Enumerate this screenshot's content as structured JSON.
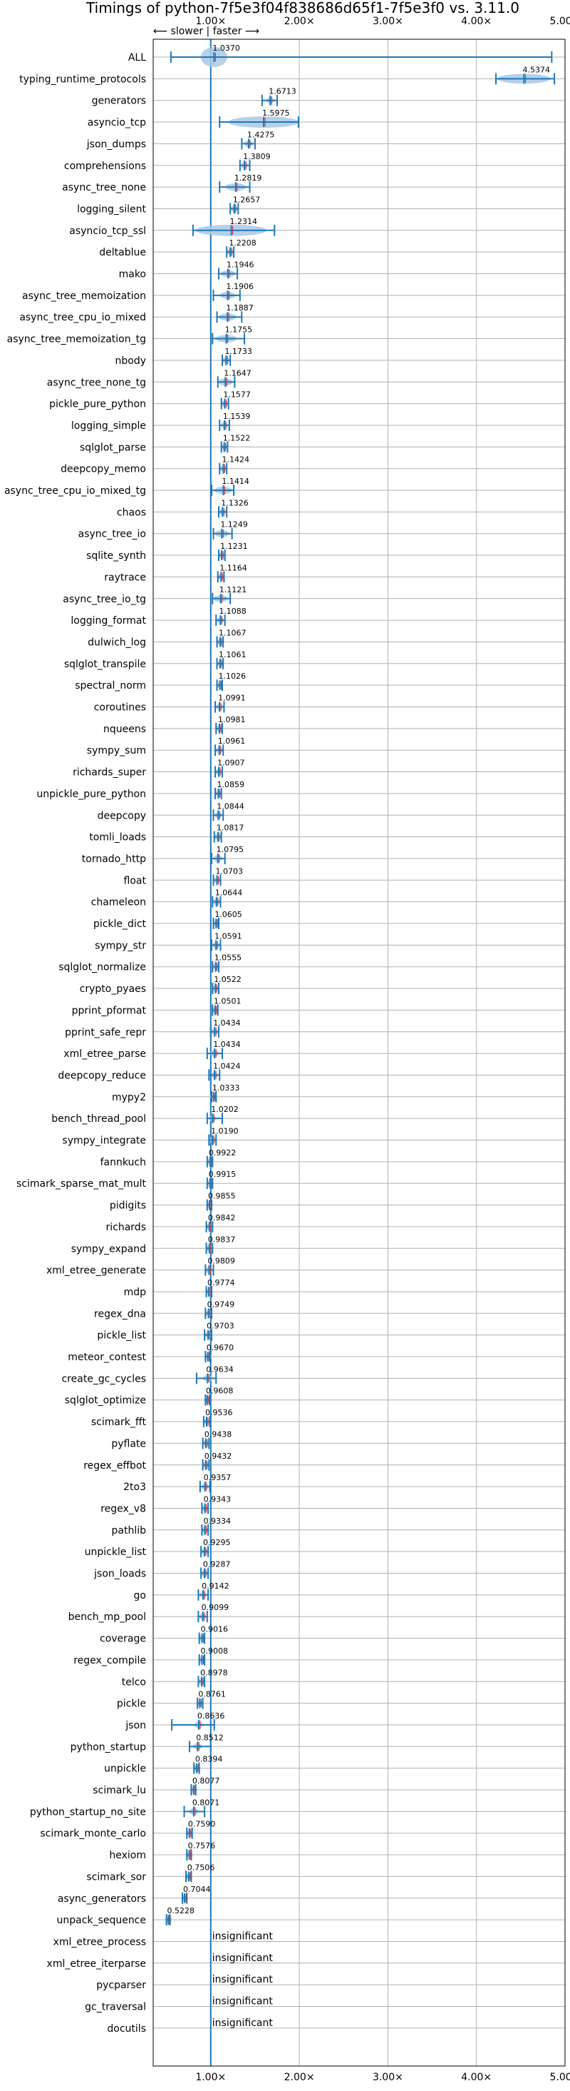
{
  "chart_data": {
    "type": "violin",
    "title": "Timings of python-7f5e3f04f838686d65f1-7f5e3f0 vs. 3.11.0",
    "speed_hint": "⟵ slower | faster ⟶",
    "xlim": [
      0.35,
      5.0
    ],
    "x_ticks": [
      1,
      2,
      3,
      4,
      5
    ],
    "x_tick_labels": [
      "1.00×",
      "2.00×",
      "3.00×",
      "4.00×",
      "5.00×"
    ],
    "grid": true,
    "reference_line": 1.0,
    "colors": {
      "violin": "#a9c8e4",
      "line": "#1f77b4",
      "mean": "#d62728"
    },
    "insignificant_label": "insignificant",
    "benchmarks": [
      {
        "name": "ALL",
        "value": 1.037,
        "min": 0.55,
        "max": 4.85,
        "spread": 0.15
      },
      {
        "name": "typing_runtime_protocols",
        "value": 4.5374,
        "min": 4.22,
        "max": 4.88,
        "spread": 0.3
      },
      {
        "name": "generators",
        "value": 1.6713,
        "min": 1.58,
        "max": 1.75,
        "spread": 0.04
      },
      {
        "name": "asyncio_tcp",
        "value": 1.5975,
        "min": 1.1,
        "max": 1.99,
        "spread": 0.4
      },
      {
        "name": "json_dumps",
        "value": 1.4275,
        "min": 1.35,
        "max": 1.5,
        "spread": 0.05
      },
      {
        "name": "comprehensions",
        "value": 1.3809,
        "min": 1.33,
        "max": 1.44,
        "spread": 0.04
      },
      {
        "name": "async_tree_none",
        "value": 1.2819,
        "min": 1.1,
        "max": 1.44,
        "spread": 0.12
      },
      {
        "name": "logging_silent",
        "value": 1.2657,
        "min": 1.22,
        "max": 1.31,
        "spread": 0.04
      },
      {
        "name": "asyncio_tcp_ssl",
        "value": 1.2314,
        "min": 0.8,
        "max": 1.72,
        "spread": 0.4
      },
      {
        "name": "deltablue",
        "value": 1.2208,
        "min": 1.18,
        "max": 1.26,
        "spread": 0.03
      },
      {
        "name": "mako",
        "value": 1.1946,
        "min": 1.09,
        "max": 1.3,
        "spread": 0.08
      },
      {
        "name": "async_tree_memoization",
        "value": 1.1906,
        "min": 1.03,
        "max": 1.33,
        "spread": 0.09
      },
      {
        "name": "async_tree_cpu_io_mixed",
        "value": 1.1887,
        "min": 1.07,
        "max": 1.35,
        "spread": 0.1
      },
      {
        "name": "async_tree_memoization_tg",
        "value": 1.1755,
        "min": 1.02,
        "max": 1.38,
        "spread": 0.12
      },
      {
        "name": "nbody",
        "value": 1.1733,
        "min": 1.13,
        "max": 1.22,
        "spread": 0.03
      },
      {
        "name": "async_tree_none_tg",
        "value": 1.1647,
        "min": 1.08,
        "max": 1.27,
        "spread": 0.08
      },
      {
        "name": "pickle_pure_python",
        "value": 1.1577,
        "min": 1.12,
        "max": 1.2,
        "spread": 0.03
      },
      {
        "name": "logging_simple",
        "value": 1.1539,
        "min": 1.1,
        "max": 1.21,
        "spread": 0.04
      },
      {
        "name": "sqlglot_parse",
        "value": 1.1522,
        "min": 1.12,
        "max": 1.19,
        "spread": 0.03
      },
      {
        "name": "deepcopy_memo",
        "value": 1.1424,
        "min": 1.1,
        "max": 1.18,
        "spread": 0.03
      },
      {
        "name": "async_tree_cpu_io_mixed_tg",
        "value": 1.1414,
        "min": 1.01,
        "max": 1.26,
        "spread": 0.1
      },
      {
        "name": "chaos",
        "value": 1.1326,
        "min": 1.09,
        "max": 1.18,
        "spread": 0.03
      },
      {
        "name": "async_tree_io",
        "value": 1.1249,
        "min": 1.03,
        "max": 1.24,
        "spread": 0.08
      },
      {
        "name": "sqlite_synth",
        "value": 1.1231,
        "min": 1.09,
        "max": 1.16,
        "spread": 0.03
      },
      {
        "name": "raytrace",
        "value": 1.1164,
        "min": 1.08,
        "max": 1.15,
        "spread": 0.03
      },
      {
        "name": "async_tree_io_tg",
        "value": 1.1121,
        "min": 1.02,
        "max": 1.22,
        "spread": 0.08
      },
      {
        "name": "logging_format",
        "value": 1.1088,
        "min": 1.06,
        "max": 1.16,
        "spread": 0.04
      },
      {
        "name": "dulwich_log",
        "value": 1.1067,
        "min": 1.07,
        "max": 1.14,
        "spread": 0.03
      },
      {
        "name": "sqlglot_transpile",
        "value": 1.1061,
        "min": 1.07,
        "max": 1.14,
        "spread": 0.03
      },
      {
        "name": "spectral_norm",
        "value": 1.1026,
        "min": 1.07,
        "max": 1.13,
        "spread": 0.03
      },
      {
        "name": "coroutines",
        "value": 1.0991,
        "min": 1.05,
        "max": 1.15,
        "spread": 0.04
      },
      {
        "name": "nqueens",
        "value": 1.0981,
        "min": 1.06,
        "max": 1.13,
        "spread": 0.03
      },
      {
        "name": "sympy_sum",
        "value": 1.0961,
        "min": 1.05,
        "max": 1.14,
        "spread": 0.03
      },
      {
        "name": "richards_super",
        "value": 1.0907,
        "min": 1.05,
        "max": 1.13,
        "spread": 0.03
      },
      {
        "name": "unpickle_pure_python",
        "value": 1.0859,
        "min": 1.05,
        "max": 1.12,
        "spread": 0.03
      },
      {
        "name": "deepcopy",
        "value": 1.0844,
        "min": 1.03,
        "max": 1.14,
        "spread": 0.04
      },
      {
        "name": "tomli_loads",
        "value": 1.0817,
        "min": 1.04,
        "max": 1.12,
        "spread": 0.03
      },
      {
        "name": "tornado_http",
        "value": 1.0795,
        "min": 1.01,
        "max": 1.16,
        "spread": 0.05
      },
      {
        "name": "float",
        "value": 1.0703,
        "min": 1.03,
        "max": 1.11,
        "spread": 0.03
      },
      {
        "name": "chameleon",
        "value": 1.0644,
        "min": 1.02,
        "max": 1.11,
        "spread": 0.03
      },
      {
        "name": "pickle_dict",
        "value": 1.0605,
        "min": 1.03,
        "max": 1.09,
        "spread": 0.03
      },
      {
        "name": "sympy_str",
        "value": 1.0591,
        "min": 1.01,
        "max": 1.11,
        "spread": 0.04
      },
      {
        "name": "sqlglot_normalize",
        "value": 1.0555,
        "min": 1.02,
        "max": 1.09,
        "spread": 0.03
      },
      {
        "name": "crypto_pyaes",
        "value": 1.0522,
        "min": 1.02,
        "max": 1.09,
        "spread": 0.03
      },
      {
        "name": "pprint_pformat",
        "value": 1.0501,
        "min": 1.02,
        "max": 1.08,
        "spread": 0.03
      },
      {
        "name": "pprint_safe_repr",
        "value": 1.0434,
        "min": 1.0,
        "max": 1.09,
        "spread": 0.03
      },
      {
        "name": "xml_etree_parse",
        "value": 1.0434,
        "min": 0.96,
        "max": 1.13,
        "spread": 0.05
      },
      {
        "name": "deepcopy_reduce",
        "value": 1.0424,
        "min": 0.98,
        "max": 1.1,
        "spread": 0.04
      },
      {
        "name": "mypy2",
        "value": 1.0333,
        "min": 1.01,
        "max": 1.06,
        "spread": 0.02
      },
      {
        "name": "bench_thread_pool",
        "value": 1.0202,
        "min": 0.96,
        "max": 1.13,
        "spread": 0.04
      },
      {
        "name": "sympy_integrate",
        "value": 1.019,
        "min": 0.98,
        "max": 1.06,
        "spread": 0.03
      },
      {
        "name": "fannkuch",
        "value": 0.9922,
        "min": 0.96,
        "max": 1.02,
        "spread": 0.02
      },
      {
        "name": "scimark_sparse_mat_mult",
        "value": 0.9915,
        "min": 0.96,
        "max": 1.02,
        "spread": 0.02
      },
      {
        "name": "pidigits",
        "value": 0.9855,
        "min": 0.96,
        "max": 1.01,
        "spread": 0.02
      },
      {
        "name": "richards",
        "value": 0.9842,
        "min": 0.95,
        "max": 1.02,
        "spread": 0.02
      },
      {
        "name": "sympy_expand",
        "value": 0.9837,
        "min": 0.95,
        "max": 1.02,
        "spread": 0.02
      },
      {
        "name": "xml_etree_generate",
        "value": 0.9809,
        "min": 0.94,
        "max": 1.03,
        "spread": 0.03
      },
      {
        "name": "mdp",
        "value": 0.9774,
        "min": 0.95,
        "max": 1.01,
        "spread": 0.02
      },
      {
        "name": "regex_dna",
        "value": 0.9749,
        "min": 0.94,
        "max": 1.01,
        "spread": 0.02
      },
      {
        "name": "pickle_list",
        "value": 0.9703,
        "min": 0.93,
        "max": 1.01,
        "spread": 0.02
      },
      {
        "name": "meteor_contest",
        "value": 0.967,
        "min": 0.94,
        "max": 0.99,
        "spread": 0.02
      },
      {
        "name": "create_gc_cycles",
        "value": 0.9634,
        "min": 0.84,
        "max": 1.06,
        "spread": 0.05
      },
      {
        "name": "sqlglot_optimize",
        "value": 0.9608,
        "min": 0.94,
        "max": 0.99,
        "spread": 0.02
      },
      {
        "name": "scimark_fft",
        "value": 0.9536,
        "min": 0.92,
        "max": 0.99,
        "spread": 0.02
      },
      {
        "name": "pyflate",
        "value": 0.9438,
        "min": 0.91,
        "max": 0.98,
        "spread": 0.02
      },
      {
        "name": "regex_effbot",
        "value": 0.9432,
        "min": 0.91,
        "max": 0.98,
        "spread": 0.02
      },
      {
        "name": "2to3",
        "value": 0.9357,
        "min": 0.88,
        "max": 0.99,
        "spread": 0.03
      },
      {
        "name": "regex_v8",
        "value": 0.9343,
        "min": 0.9,
        "max": 0.97,
        "spread": 0.02
      },
      {
        "name": "pathlib",
        "value": 0.9334,
        "min": 0.9,
        "max": 0.97,
        "spread": 0.02
      },
      {
        "name": "unpickle_list",
        "value": 0.9295,
        "min": 0.89,
        "max": 0.97,
        "spread": 0.02
      },
      {
        "name": "json_loads",
        "value": 0.9287,
        "min": 0.89,
        "max": 0.97,
        "spread": 0.02
      },
      {
        "name": "go",
        "value": 0.9142,
        "min": 0.86,
        "max": 0.97,
        "spread": 0.03
      },
      {
        "name": "bench_mp_pool",
        "value": 0.9099,
        "min": 0.86,
        "max": 0.96,
        "spread": 0.03
      },
      {
        "name": "coverage",
        "value": 0.9016,
        "min": 0.87,
        "max": 0.93,
        "spread": 0.02
      },
      {
        "name": "regex_compile",
        "value": 0.9008,
        "min": 0.87,
        "max": 0.93,
        "spread": 0.02
      },
      {
        "name": "telco",
        "value": 0.8978,
        "min": 0.86,
        "max": 0.93,
        "spread": 0.02
      },
      {
        "name": "pickle",
        "value": 0.8761,
        "min": 0.85,
        "max": 0.91,
        "spread": 0.02
      },
      {
        "name": "json",
        "value": 0.8636,
        "min": 0.56,
        "max": 1.04,
        "spread": 0.05
      },
      {
        "name": "python_startup",
        "value": 0.8512,
        "min": 0.76,
        "max": 1.0,
        "spread": 0.05
      },
      {
        "name": "unpickle",
        "value": 0.8394,
        "min": 0.81,
        "max": 0.87,
        "spread": 0.02
      },
      {
        "name": "scimark_lu",
        "value": 0.8077,
        "min": 0.78,
        "max": 0.83,
        "spread": 0.02
      },
      {
        "name": "python_startup_no_site",
        "value": 0.8071,
        "min": 0.7,
        "max": 0.93,
        "spread": 0.05
      },
      {
        "name": "scimark_monte_carlo",
        "value": 0.759,
        "min": 0.73,
        "max": 0.79,
        "spread": 0.02
      },
      {
        "name": "hexiom",
        "value": 0.7576,
        "min": 0.73,
        "max": 0.78,
        "spread": 0.02
      },
      {
        "name": "scimark_sor",
        "value": 0.7506,
        "min": 0.72,
        "max": 0.78,
        "spread": 0.02
      },
      {
        "name": "async_generators",
        "value": 0.7044,
        "min": 0.68,
        "max": 0.73,
        "spread": 0.02
      },
      {
        "name": "unpack_sequence",
        "value": 0.5228,
        "min": 0.5,
        "max": 0.54,
        "spread": 0.02
      },
      {
        "name": "xml_etree_process",
        "insignificant": true
      },
      {
        "name": "xml_etree_iterparse",
        "insignificant": true
      },
      {
        "name": "pycparser",
        "insignificant": true
      },
      {
        "name": "gc_traversal",
        "insignificant": true
      },
      {
        "name": "docutils",
        "insignificant": true
      }
    ]
  }
}
